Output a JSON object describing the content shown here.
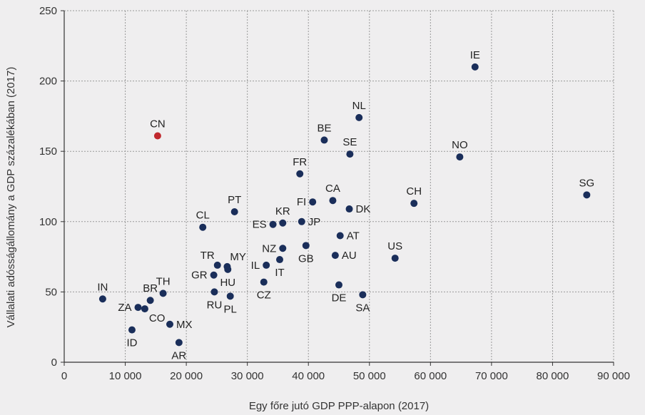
{
  "chart_data": {
    "type": "scatter",
    "title": "",
    "xlabel": "Egy főre jutó GDP PPP-alapon (2017)",
    "ylabel": "Vállalati adósságállomány a GDP százalékában (2017)",
    "xlim": [
      0,
      90000
    ],
    "ylim": [
      0,
      250
    ],
    "x_ticks": [
      0,
      10000,
      20000,
      30000,
      40000,
      50000,
      60000,
      70000,
      80000,
      90000
    ],
    "x_tick_labels": [
      "0",
      "10 000",
      "20 000",
      "30 000",
      "40 000",
      "50 000",
      "60 000",
      "70 000",
      "80 000",
      "90 000"
    ],
    "y_ticks": [
      0,
      50,
      100,
      150,
      200,
      250
    ],
    "y_tick_labels": [
      "0",
      "50",
      "100",
      "150",
      "200",
      "250"
    ],
    "grid": true,
    "colors": {
      "default": "#1a2e5a",
      "highlight": "#c0282d",
      "grid": "#999999",
      "background": "#efeeef"
    },
    "points": [
      {
        "label": "IN",
        "x": 6300,
        "y": 45,
        "pos": "above"
      },
      {
        "label": "ZA",
        "x": 12100,
        "y": 39,
        "pos": "left"
      },
      {
        "label": "BR",
        "x": 14100,
        "y": 44,
        "pos": "above"
      },
      {
        "label": "CO",
        "x": 13200,
        "y": 38,
        "pos": "below-right"
      },
      {
        "label": "ID",
        "x": 11100,
        "y": 23,
        "pos": "below"
      },
      {
        "label": "TH",
        "x": 16200,
        "y": 49,
        "pos": "above"
      },
      {
        "label": "MX",
        "x": 17300,
        "y": 27,
        "pos": "right"
      },
      {
        "label": "AR",
        "x": 18800,
        "y": 14,
        "pos": "below"
      },
      {
        "label": "CN",
        "x": 15300,
        "y": 161,
        "pos": "above",
        "highlight": true
      },
      {
        "label": "CL",
        "x": 22700,
        "y": 96,
        "pos": "above"
      },
      {
        "label": "PT",
        "x": 27900,
        "y": 107,
        "pos": "above"
      },
      {
        "label": "TR",
        "x": 25100,
        "y": 69,
        "pos": "above-left"
      },
      {
        "label": "MY",
        "x": 26700,
        "y": 68,
        "pos": "above-right"
      },
      {
        "label": "GR",
        "x": 24500,
        "y": 62,
        "pos": "left"
      },
      {
        "label": "HU",
        "x": 26800,
        "y": 66,
        "pos": "below"
      },
      {
        "label": "RU",
        "x": 24600,
        "y": 50,
        "pos": "below"
      },
      {
        "label": "PL",
        "x": 27200,
        "y": 47,
        "pos": "below"
      },
      {
        "label": "CZ",
        "x": 32700,
        "y": 57,
        "pos": "below"
      },
      {
        "label": "IL",
        "x": 33100,
        "y": 69,
        "pos": "left"
      },
      {
        "label": "IT",
        "x": 35300,
        "y": 73,
        "pos": "below"
      },
      {
        "label": "NZ",
        "x": 35800,
        "y": 81,
        "pos": "left"
      },
      {
        "label": "ES",
        "x": 34200,
        "y": 98,
        "pos": "left"
      },
      {
        "label": "KR",
        "x": 35800,
        "y": 99,
        "pos": "above"
      },
      {
        "label": "JP",
        "x": 38900,
        "y": 100,
        "pos": "right"
      },
      {
        "label": "GB",
        "x": 39600,
        "y": 83,
        "pos": "below"
      },
      {
        "label": "FI",
        "x": 40700,
        "y": 114,
        "pos": "left"
      },
      {
        "label": "FR",
        "x": 38600,
        "y": 134,
        "pos": "above"
      },
      {
        "label": "BE",
        "x": 42600,
        "y": 158,
        "pos": "above"
      },
      {
        "label": "CA",
        "x": 44000,
        "y": 115,
        "pos": "above"
      },
      {
        "label": "AU",
        "x": 44400,
        "y": 76,
        "pos": "right"
      },
      {
        "label": "AT",
        "x": 45200,
        "y": 90,
        "pos": "right"
      },
      {
        "label": "DE",
        "x": 45000,
        "y": 55,
        "pos": "below"
      },
      {
        "label": "NL",
        "x": 48300,
        "y": 174,
        "pos": "above"
      },
      {
        "label": "SE",
        "x": 46800,
        "y": 148,
        "pos": "above"
      },
      {
        "label": "DK",
        "x": 46700,
        "y": 109,
        "pos": "right"
      },
      {
        "label": "SA",
        "x": 48900,
        "y": 48,
        "pos": "below"
      },
      {
        "label": "US",
        "x": 54200,
        "y": 74,
        "pos": "above"
      },
      {
        "label": "CH",
        "x": 57300,
        "y": 113,
        "pos": "above"
      },
      {
        "label": "NO",
        "x": 64800,
        "y": 146,
        "pos": "above"
      },
      {
        "label": "IE",
        "x": 67300,
        "y": 210,
        "pos": "above"
      },
      {
        "label": "SG",
        "x": 85600,
        "y": 119,
        "pos": "above"
      }
    ]
  }
}
